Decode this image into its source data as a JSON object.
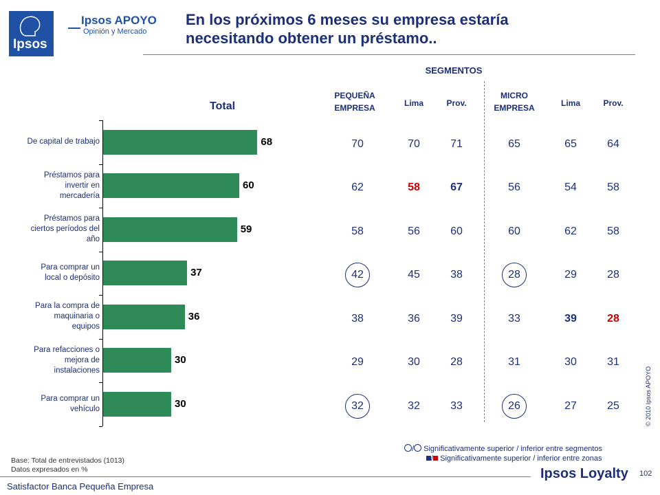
{
  "header": {
    "logo_text": "Ipsos",
    "brand_name": "Ipsos APOYO",
    "brand_sub": "Opinión y Mercado",
    "title_line1": "En los próximos 6 meses su empresa estaría",
    "title_line2": "necesitando obtener un préstamo.."
  },
  "segments_label": "SEGMENTOS",
  "columns": {
    "pequena_line1": "PEQUEÑA",
    "pequena_line2": "EMPRESA",
    "lima1": "Lima",
    "prov1": "Prov.",
    "micro_line1": "MICRO",
    "micro_line2": "EMPRESA",
    "lima2": "Lima",
    "prov2": "Prov."
  },
  "chart_data": {
    "type": "bar",
    "orientation": "horizontal",
    "title": "Total",
    "categories": [
      [
        "De capital de trabajo"
      ],
      [
        "Préstamos para",
        "invertir en",
        "mercadería"
      ],
      [
        "Préstamos para",
        "ciertos períodos del",
        "año"
      ],
      [
        "Para comprar un",
        "local o depósito"
      ],
      [
        "Para la compra de",
        "maquinaria o",
        "equipos"
      ],
      [
        "Para refacciones o",
        "mejora de",
        "instalaciones"
      ],
      [
        "Para comprar un",
        "vehículo"
      ]
    ],
    "values": [
      68,
      60,
      59,
      37,
      36,
      30,
      30
    ],
    "xlim": [
      0,
      100
    ],
    "bar_color": "#2e8b57"
  },
  "table": {
    "rows": [
      {
        "pequena": "70",
        "lima1": "70",
        "prov1": "71",
        "micro": "65",
        "lima2": "65",
        "prov2": "64"
      },
      {
        "pequena": "62",
        "lima1": "58",
        "prov1": "67",
        "micro": "56",
        "lima2": "54",
        "prov2": "58"
      },
      {
        "pequena": "58",
        "lima1": "56",
        "prov1": "60",
        "micro": "60",
        "lima2": "62",
        "prov2": "58"
      },
      {
        "pequena": "42",
        "lima1": "45",
        "prov1": "38",
        "micro": "28",
        "lima2": "29",
        "prov2": "28"
      },
      {
        "pequena": "38",
        "lima1": "36",
        "prov1": "39",
        "micro": "33",
        "lima2": "39",
        "prov2": "28"
      },
      {
        "pequena": "29",
        "lima1": "30",
        "prov1": "28",
        "micro": "31",
        "lima2": "30",
        "prov2": "31"
      },
      {
        "pequena": "32",
        "lima1": "32",
        "prov1": "33",
        "micro": "26",
        "lima2": "27",
        "prov2": "25"
      }
    ],
    "red_cells": [
      [
        1,
        "lima1"
      ],
      [
        4,
        "prov2"
      ]
    ],
    "blue_bold_cells": [
      [
        1,
        "prov1"
      ],
      [
        4,
        "lima2"
      ]
    ],
    "circled_cells": [
      [
        3,
        "pequena"
      ],
      [
        3,
        "micro"
      ],
      [
        6,
        "pequena"
      ],
      [
        6,
        "micro"
      ]
    ]
  },
  "legend": {
    "line1_sep": "/",
    "line1": "Significativamente superior / inferior entre segmentos",
    "line2_sep": "/",
    "line2": "Significativamente superior / inferior entre zonas",
    "red": "#cc0000",
    "blue": "#1c2f78"
  },
  "footer": {
    "base_line1": "Base: Total de entrevistados (1013)",
    "base_line2": "Datos expresados en %",
    "left": "Satisfactor Banca Pequeña Empresa",
    "loyalty": "Ipsos Loyalty",
    "page": "102",
    "copyright": "© 2010 Ipsos APOYO"
  }
}
